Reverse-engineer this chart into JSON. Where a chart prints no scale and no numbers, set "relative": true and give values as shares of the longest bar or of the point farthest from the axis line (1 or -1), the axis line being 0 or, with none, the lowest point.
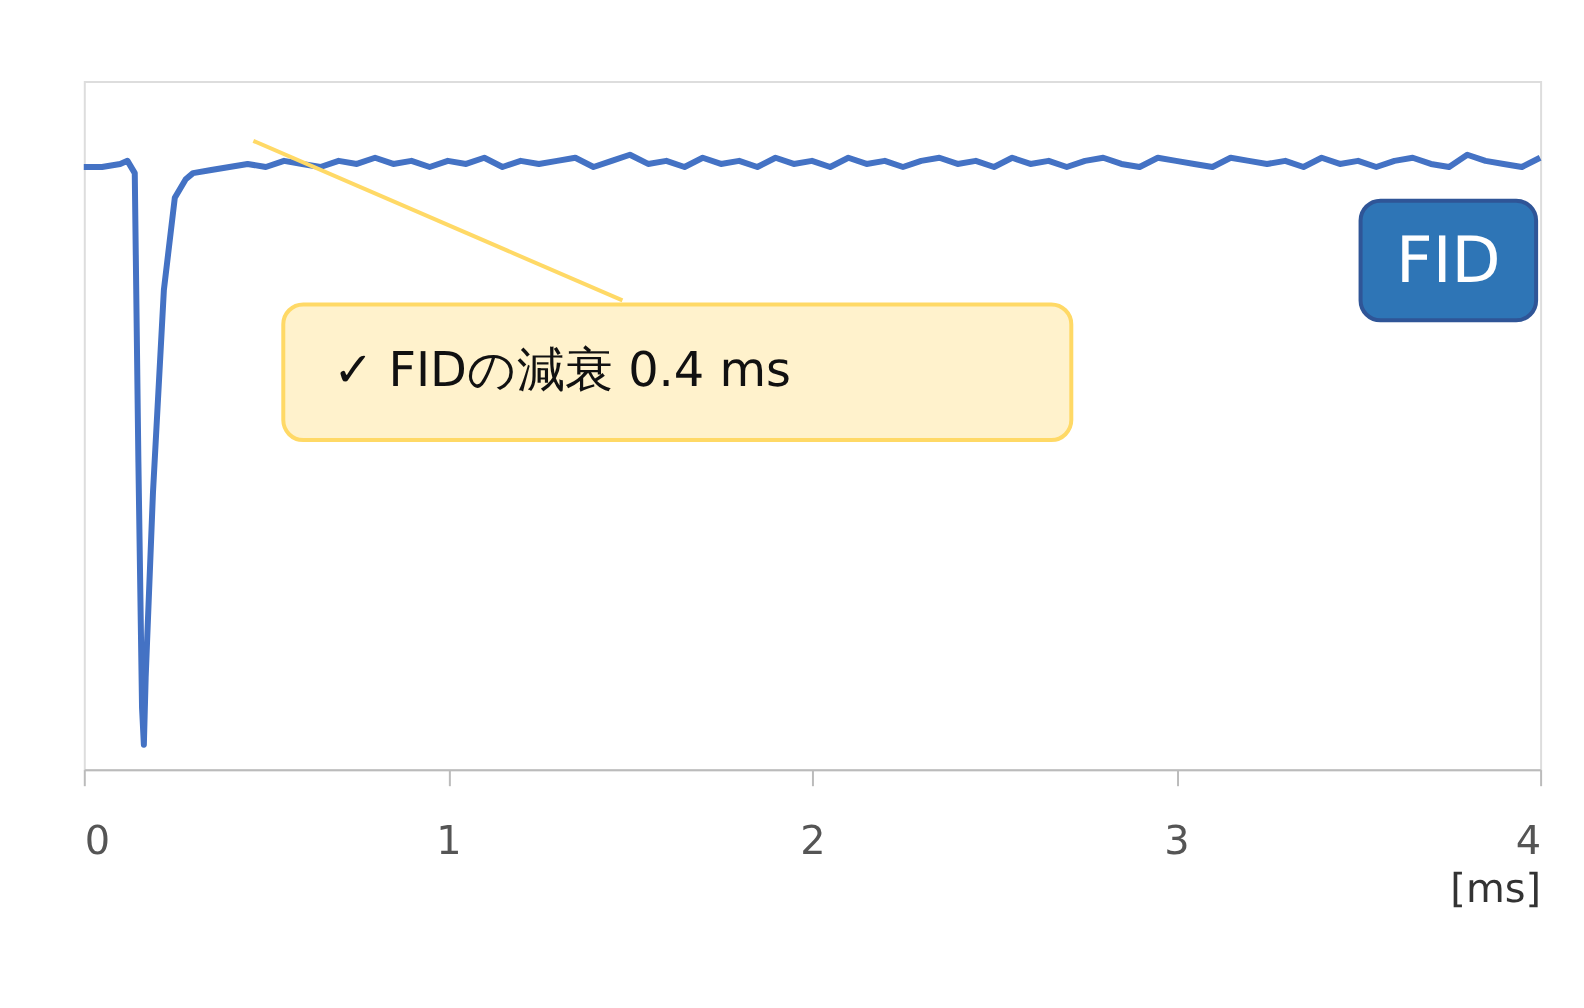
{
  "chart_data": {
    "type": "line",
    "relative": true,
    "xlabel": "[ms]",
    "xlim": [
      0,
      4
    ],
    "xticks": [
      0,
      1,
      2,
      3,
      4
    ],
    "grid": false,
    "marker": "none",
    "line_style": "solid",
    "tick_labels": "x",
    "x": [
      0,
      0.05,
      0.1,
      0.12,
      0.14,
      0.15,
      0.16,
      0.165,
      0.17,
      0.19,
      0.22,
      0.25,
      0.28,
      0.3,
      0.35,
      0.4,
      0.45,
      0.5,
      0.55,
      0.6,
      0.65,
      0.7,
      0.75,
      0.8,
      0.85,
      0.9,
      0.95,
      1.0,
      1.05,
      1.1,
      1.15,
      1.2,
      1.25,
      1.3,
      1.35,
      1.4,
      1.45,
      1.5,
      1.55,
      1.6,
      1.65,
      1.7,
      1.75,
      1.8,
      1.85,
      1.9,
      1.95,
      2.0,
      2.05,
      2.1,
      2.15,
      2.2,
      2.25,
      2.3,
      2.35,
      2.4,
      2.45,
      2.5,
      2.55,
      2.6,
      2.65,
      2.7,
      2.75,
      2.8,
      2.85,
      2.9,
      2.95,
      3.0,
      3.05,
      3.1,
      3.15,
      3.2,
      3.25,
      3.3,
      3.35,
      3.4,
      3.45,
      3.5,
      3.55,
      3.6,
      3.65,
      3.7,
      3.75,
      3.8,
      3.85,
      3.9,
      3.95,
      4.0
    ],
    "series": [
      {
        "color": "#4472c4",
        "values": [
          0.98,
          0.98,
          0.985,
          0.99,
          0.97,
          0.5,
          0.1,
          0.04,
          0.15,
          0.45,
          0.78,
          0.93,
          0.96,
          0.97,
          0.975,
          0.98,
          0.985,
          0.98,
          0.99,
          0.985,
          0.98,
          0.99,
          0.985,
          0.995,
          0.985,
          0.99,
          0.98,
          0.99,
          0.985,
          0.995,
          0.98,
          0.99,
          0.985,
          0.99,
          0.995,
          0.98,
          0.99,
          1.0,
          0.985,
          0.99,
          0.98,
          0.995,
          0.985,
          0.99,
          0.98,
          0.995,
          0.985,
          0.99,
          0.98,
          0.995,
          0.985,
          0.99,
          0.98,
          0.99,
          0.995,
          0.985,
          0.99,
          0.98,
          0.995,
          0.985,
          0.99,
          0.98,
          0.99,
          0.995,
          0.985,
          0.98,
          0.995,
          0.99,
          0.985,
          0.98,
          0.995,
          0.99,
          0.985,
          0.99,
          0.98,
          0.995,
          0.985,
          0.99,
          0.98,
          0.99,
          0.995,
          0.985,
          0.98,
          1.0,
          0.99,
          0.985,
          0.98,
          0.995
        ]
      }
    ],
    "annotations": [
      "✓  FIDの減衰 0.4 ms",
      "FID"
    ]
  }
}
